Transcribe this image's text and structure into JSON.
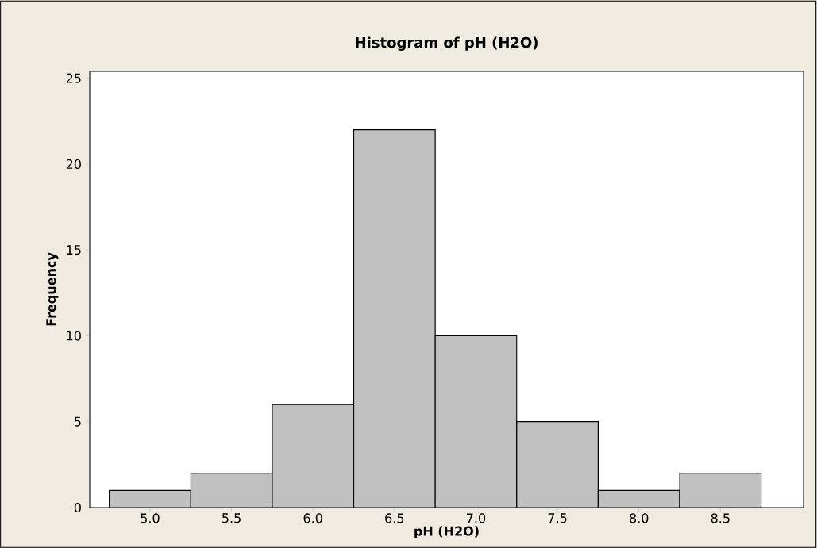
{
  "chart_data": {
    "type": "histogram",
    "title": "Histogram of pH (H2O)",
    "xlabel": "pH (H2O)",
    "ylabel": "Frequency",
    "bins": [
      4.75,
      5.25,
      5.75,
      6.25,
      6.75,
      7.25,
      7.75,
      8.25,
      8.75
    ],
    "values": [
      1,
      2,
      6,
      22,
      10,
      5,
      1,
      2
    ],
    "color": "#c0c0c0",
    "xlim": [
      4.63,
      9.01
    ],
    "ylim": [
      0,
      25.4
    ],
    "xticks": [
      {
        "value": 5.0,
        "label": "5.0"
      },
      {
        "value": 5.5,
        "label": "5.5"
      },
      {
        "value": 6.0,
        "label": "6.0"
      },
      {
        "value": 6.5,
        "label": "6.5"
      },
      {
        "value": 7.0,
        "label": "7.0"
      },
      {
        "value": 7.5,
        "label": "7.5"
      },
      {
        "value": 8.0,
        "label": "8.0"
      },
      {
        "value": 8.5,
        "label": "8.5"
      }
    ],
    "yticks": [
      0,
      5,
      10,
      15,
      20,
      25
    ],
    "grid": false
  }
}
